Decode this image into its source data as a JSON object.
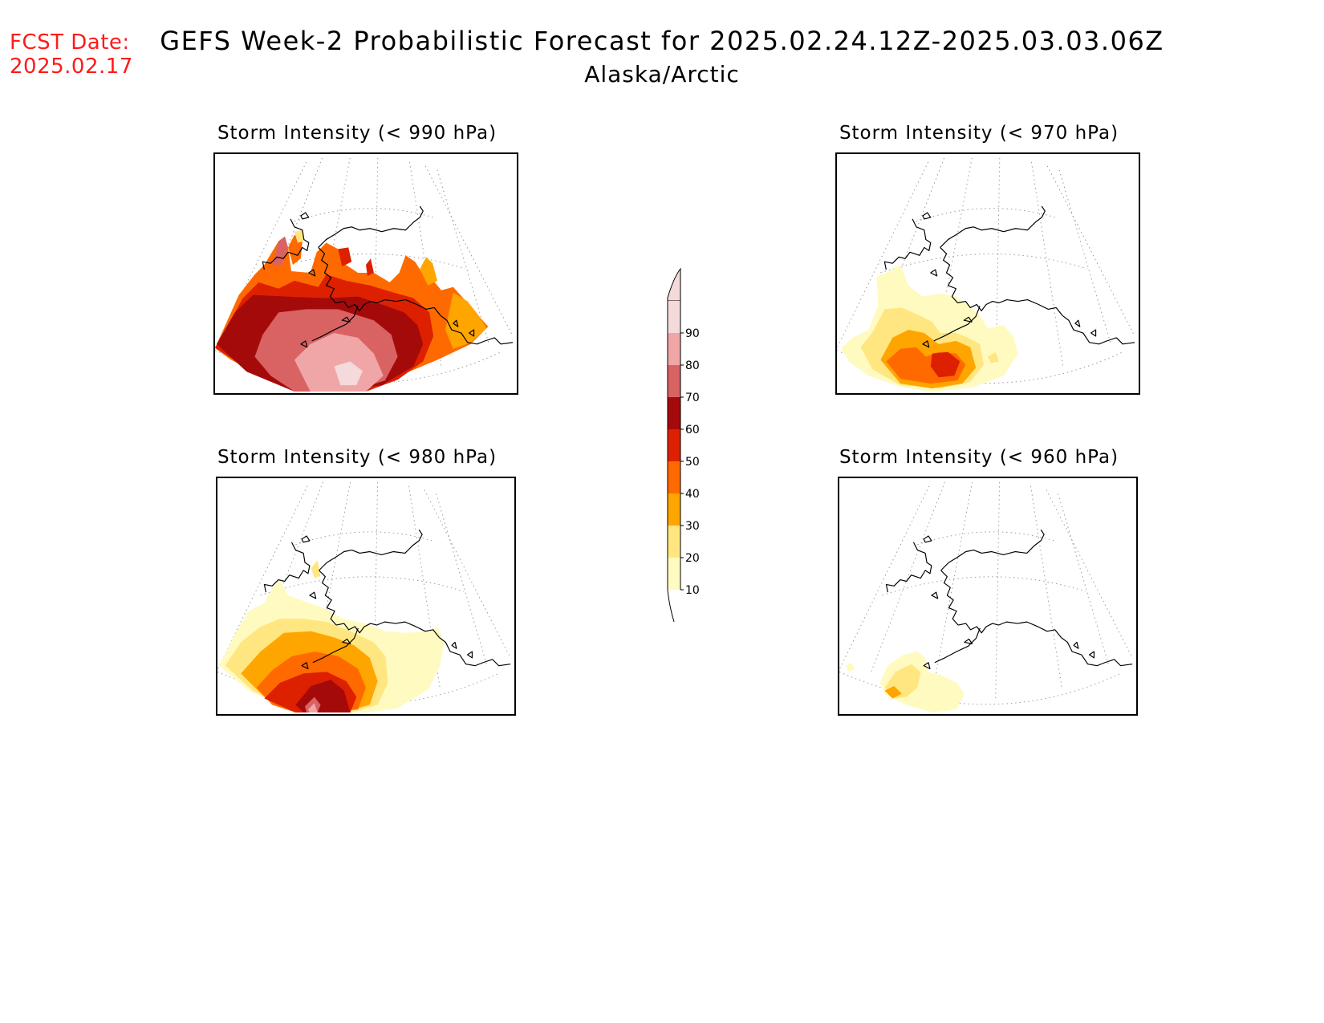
{
  "forecast_date": {
    "label": "FCST Date:",
    "value": "2025.02.17"
  },
  "title": {
    "line1": "GEFS Week-2 Probabilistic Forecast for 2025.02.24.12Z-2025.03.03.06Z",
    "line2": "Alaska/Arctic"
  },
  "panels": [
    {
      "title": "Storm Intensity (< 990 hPa)"
    },
    {
      "title": "Storm Intensity (< 970 hPa)"
    },
    {
      "title": "Storm Intensity (< 980 hPa)"
    },
    {
      "title": "Storm Intensity (< 960 hPa)"
    }
  ],
  "colorbar": {
    "levels": [
      "90",
      "80",
      "70",
      "60",
      "50",
      "40",
      "30",
      "20",
      "10"
    ],
    "colors": [
      "#f4dada",
      "#f0a6a6",
      "#d96262",
      "#a50a0a",
      "#dd2000",
      "#ff6a00",
      "#ffa500",
      "#ffe680",
      "#fffac0"
    ]
  },
  "palette": {
    "p10": "#fffac0",
    "p20": "#ffe680",
    "p30": "#ffa500",
    "p40": "#ff6a00",
    "p50": "#dd2000",
    "p60": "#a50a0a",
    "p70": "#d96262",
    "p80": "#f0a6a6",
    "p90": "#f4dada",
    "coast": "#000000",
    "grid": "#999999",
    "fcst_text": "#ff1a1a"
  }
}
